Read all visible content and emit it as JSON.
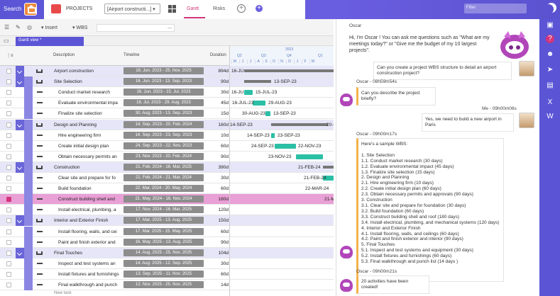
{
  "topbar": {
    "search_label": "Search",
    "projects_label": "PROJECTS",
    "project_select": "[Airport constructi...] ▾",
    "tabs": [
      {
        "label": "Gantt"
      },
      {
        "label": "Risks"
      }
    ],
    "filter_placeholder": "Filter"
  },
  "toolbar": {
    "insert_label": "▾ Insert",
    "wbs_label": "▾ WBS",
    "wbs_value": "..."
  },
  "view": {
    "tab_label": "Gantt view *"
  },
  "columns": {
    "description": "Description",
    "timeline": "Timeline",
    "duration": "Duration"
  },
  "timeline_header": {
    "year": "2023",
    "quarters": [
      "Q2",
      "Q3",
      "Q4",
      "Q1"
    ],
    "months": [
      "M",
      "J",
      "J",
      "A",
      "S",
      "O",
      "N",
      "D",
      "J",
      "F",
      "M"
    ]
  },
  "rows": [
    {
      "type": "group",
      "level": 0,
      "desc": "Airport construction",
      "timeline": "16. Jun. 2023 - 25. Nov. 2025",
      "duration": "894d"
    },
    {
      "type": "group",
      "level": 1,
      "desc": "Site Selection",
      "timeline": "16. Jun. 2023 - 13. Sep. 2023",
      "duration": "90d"
    },
    {
      "type": "task",
      "desc": "Conduct market research",
      "timeline": "16. Jun. 2023 - 15. Jul. 2023",
      "duration": "30d"
    },
    {
      "type": "task",
      "desc": "Evaluate environmental impa",
      "timeline": "16. Jul. 2023 - 29. Aug. 2023",
      "duration": "45d"
    },
    {
      "type": "task",
      "desc": "Finalize site selection",
      "timeline": "30. Aug. 2023 - 13. Sep. 2023",
      "duration": "15d"
    },
    {
      "type": "group",
      "level": 1,
      "desc": "Design and Planning",
      "timeline": "14. Sep. 2023 - 20. Feb. 2024",
      "duration": "160d"
    },
    {
      "type": "task",
      "desc": "Hire engineering firm",
      "timeline": "14. Sep. 2023 - 23. Sep. 2023",
      "duration": "10d"
    },
    {
      "type": "task",
      "desc": "Create initial design plan",
      "timeline": "24. Sep. 2023 - 22. Nov. 2023",
      "duration": "60d"
    },
    {
      "type": "task",
      "desc": "Obtain necessary permits an",
      "timeline": "23. Nov. 2023 - 20. Feb. 2024",
      "duration": "90d"
    },
    {
      "type": "group",
      "level": 1,
      "desc": "Construction",
      "timeline": "21. Feb. 2024 - 16. Mar. 2025",
      "duration": "390d"
    },
    {
      "type": "task",
      "desc": "Clear site and prepare for fo",
      "timeline": "21. Feb. 2024 - 21. Mar. 2024",
      "duration": "30d"
    },
    {
      "type": "task",
      "desc": "Build foundation",
      "timeline": "22. Mar. 2024 - 20. May. 2024",
      "duration": "60d"
    },
    {
      "type": "task",
      "selected": true,
      "desc": "Construct building shell and",
      "timeline": "21. May. 2024 - 16. Nov. 2024",
      "duration": "180d"
    },
    {
      "type": "task",
      "desc": "Install electrical, plumbing, a",
      "timeline": "17. Nov. 2024 - 16. Mar. 2025",
      "duration": "120d"
    },
    {
      "type": "group",
      "level": 1,
      "desc": "Interior and Exterior Finish",
      "timeline": "17. Mar. 2025 - 13. Aug. 2025",
      "duration": "150d"
    },
    {
      "type": "task",
      "desc": "Install flooring, walls, and cei",
      "timeline": "17. Mar. 2025 - 15. May. 2025",
      "duration": "60d"
    },
    {
      "type": "task",
      "desc": "Paint and finish exterior and",
      "timeline": "16. May. 2025 - 13. Aug. 2025",
      "duration": "90d"
    },
    {
      "type": "group",
      "level": 1,
      "desc": "Final Touches",
      "timeline": "14. Aug. 2025 - 25. Nov. 2025",
      "duration": "104d"
    },
    {
      "type": "task",
      "desc": "Inspect and test systems an",
      "timeline": "14. Aug. 2025 - 12. Sep. 2025",
      "duration": "30d"
    },
    {
      "type": "task",
      "desc": "Install fixtures and furnishings",
      "timeline": "13. Sep. 2025 - 11. Nov. 2025",
      "duration": "60d"
    },
    {
      "type": "task",
      "desc": "Final walkthrough and punch",
      "timeline": "12. Nov. 2025 - 25. Nov. 2025",
      "duration": "14d"
    }
  ],
  "new_task_label": "New task",
  "gantt_labels": [
    "16-JU",
    "13-SEP-23",
    "16-JU",
    "15-JUL-23",
    "16-JUL-23",
    "29-AUG-23",
    "30-AUG-23",
    "13-SEP-23",
    "14-SEP-23",
    "20-FE",
    "14-SEP-23",
    "23-SEP-23",
    "24-SEP-23",
    "22-NOV-23",
    "23-NOV-23",
    "21-FEB-24",
    "21-FEB-24",
    "22-MAR-24",
    "21-MA"
  ],
  "chat": {
    "bot_name": "Oscar",
    "intro": "Hi, I'm Oscar ! You can ask me questions such as \"What are my meetings today?\" or \"Give me the budget of my 10 largest projects\".",
    "user_msg1": "Can you create a project WBS structure to detail an airport construction project?",
    "bot_hdr1": "Oscar - 08h59m54s",
    "bot_msg1": "Can you describe the project briefly?",
    "user_hdr2": "Me - 09h00m06s",
    "user_msg2": "Yes, we need to build a new airport in Paris",
    "bot_hdr2": "Oscar - 09h00m17s",
    "bot_msg2": "Here's a sample WBS:\n\n1. Site Selection\n1.1. Conduct market research (30 days)\n1.2. Evaluate environmental impact (45 days)\n1.3. Finalize site selection (15 days)\n2. Design and Planning\n2.1. Hire engineering firm (10 days)\n2.2. Create initial design plan (60 days)\n2.3. Obtain necessary permits and approvals (90 days)\n3. Construction\n3.1. Clear site and prepare for foundation (30 days)\n3.2. Build foundation (60 days)\n3.3. Construct building shell and roof (180 days)\n3.4. Install electrical, plumbing, and mechanical systems (120 days)\n4. Interior and Exterior Finish\n4.1. Install flooring, walls, and ceilings (60 days)\n4.2. Paint and finish exterior and interior (90 days)\n5. Final Touches\n5.1. Inspect and test systems and equipment (30 days)\n5.2. Install fixtures and furnishings (60 days)\n5.3. Final walkthrough and punch list (14 days )",
    "bot_hdr3": "Oscar - 09h00m21s",
    "bot_msg3": "20 activities have been created!"
  },
  "right_sidebar": {
    "icons": [
      "save-icon",
      "help-icon",
      "bot-icon",
      "send-icon",
      "chat-icon",
      "excel-icon",
      "word-icon"
    ]
  }
}
